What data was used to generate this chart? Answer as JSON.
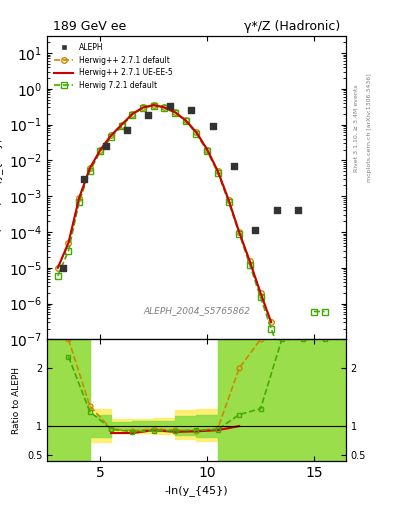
{
  "title_left": "189 GeV ee",
  "title_right": "γ*/Z (Hadronic)",
  "xlabel": "-ln(y_{45})",
  "ylabel_main": "1/σ dσ/dln(y_{45})",
  "ylabel_ratio": "Ratio to ALEPH",
  "watermark": "ALEPH_2004_S5765862",
  "right_label_top": "Rivet 3.1.10, ≥ 3.4M events",
  "right_label_bottom": "mcplots.cern.ch [arXiv:1306.3436]",
  "xlim": [
    2.5,
    16.5
  ],
  "xticks": [
    5,
    10,
    15
  ],
  "ylim_main": [
    1e-07,
    30
  ],
  "ylim_ratio": [
    0.4,
    2.5
  ],
  "yticks_ratio": [
    0.5,
    1,
    2
  ],
  "aleph_x": [
    3.25,
    4.25,
    5.25,
    6.25,
    7.25,
    8.25,
    9.25,
    10.25,
    11.25,
    12.25,
    13.25,
    14.25
  ],
  "aleph_y": [
    1e-05,
    0.003,
    0.025,
    0.07,
    0.18,
    0.32,
    0.26,
    0.09,
    0.007,
    0.00011,
    0.0004,
    0.0004
  ],
  "hw271_x": [
    3.0,
    3.5,
    4.0,
    4.5,
    5.0,
    5.5,
    6.0,
    6.5,
    7.0,
    7.5,
    8.0,
    8.5,
    9.0,
    9.5,
    10.0,
    10.5,
    11.0,
    11.5,
    12.0,
    12.5,
    13.0,
    13.5,
    14.0,
    14.5,
    15.0
  ],
  "hw271_y": [
    1e-05,
    5e-05,
    0.0009,
    0.006,
    0.02,
    0.05,
    0.1,
    0.2,
    0.3,
    0.35,
    0.3,
    0.22,
    0.13,
    0.06,
    0.02,
    0.005,
    0.0008,
    0.0001,
    1.5e-05,
    2e-06,
    3e-07,
    null,
    null,
    null,
    null
  ],
  "hw271ue_x": [
    3.0,
    3.5,
    4.0,
    4.5,
    5.0,
    5.5,
    6.0,
    6.5,
    7.0,
    7.5,
    8.0,
    8.5,
    9.0,
    9.5,
    10.0,
    10.5,
    11.0,
    11.5,
    12.0,
    12.5,
    13.0
  ],
  "hw271ue_y": [
    1e-05,
    5e-05,
    0.0009,
    0.006,
    0.02,
    0.05,
    0.1,
    0.2,
    0.3,
    0.35,
    0.3,
    0.22,
    0.13,
    0.06,
    0.02,
    0.005,
    0.0008,
    0.0001,
    1.5e-05,
    2e-06,
    3e-07
  ],
  "hw721_x": [
    3.0,
    3.5,
    4.0,
    4.5,
    5.0,
    5.5,
    6.0,
    6.5,
    7.0,
    7.5,
    8.0,
    8.5,
    9.0,
    9.5,
    10.0,
    10.5,
    11.0,
    11.5,
    12.0,
    12.5,
    13.0,
    13.5,
    14.0,
    14.5,
    15.0,
    15.5
  ],
  "hw721_y": [
    6e-06,
    3e-05,
    0.0007,
    0.005,
    0.018,
    0.045,
    0.09,
    0.19,
    0.29,
    0.34,
    0.29,
    0.21,
    0.125,
    0.055,
    0.018,
    0.0045,
    0.0007,
    9e-05,
    1.2e-05,
    1.5e-06,
    2e-07,
    3e-08,
    null,
    null,
    6e-07,
    6e-07
  ],
  "ratio_hw271_x": [
    3.5,
    4.5,
    5.5,
    6.5,
    7.5,
    8.5,
    9.5,
    10.5,
    11.5,
    12.5
  ],
  "ratio_hw271_y": [
    2.5,
    1.35,
    0.95,
    0.92,
    0.95,
    0.93,
    0.92,
    0.96,
    2.0,
    2.5
  ],
  "ratio_hw271ue_x": [
    5.5,
    6.5,
    7.5,
    8.5,
    9.5,
    10.5,
    11.5
  ],
  "ratio_hw271ue_y": [
    0.88,
    0.88,
    0.93,
    0.9,
    0.91,
    0.93,
    1.0
  ],
  "ratio_hw721_x": [
    3.5,
    4.5,
    5.5,
    6.5,
    7.5,
    8.5,
    9.5,
    10.5,
    11.5,
    12.5,
    13.5,
    14.5,
    15.5
  ],
  "ratio_hw721_y": [
    2.2,
    1.25,
    0.95,
    0.9,
    0.92,
    0.92,
    0.93,
    0.94,
    1.2,
    1.3,
    2.5,
    2.5,
    2.5
  ],
  "green_band_x": [
    2.5,
    3.5,
    3.5,
    4.5,
    4.5,
    5.5,
    5.5,
    6.5,
    6.5,
    7.5,
    7.5,
    8.5,
    8.5,
    9.5,
    9.5,
    10.5,
    10.5,
    11.5,
    11.5,
    12.5,
    12.5,
    13.5,
    13.5,
    16.5
  ],
  "green_band_lo": [
    0.4,
    0.4,
    0.4,
    0.4,
    0.82,
    0.82,
    0.93,
    0.93,
    0.93,
    0.93,
    0.92,
    0.92,
    0.85,
    0.85,
    0.82,
    0.82,
    0.4,
    0.4,
    0.4,
    0.4,
    0.4,
    0.4,
    0.4,
    0.4
  ],
  "green_band_hi": [
    2.5,
    2.5,
    2.5,
    2.5,
    1.2,
    1.2,
    1.07,
    1.07,
    1.08,
    1.08,
    1.08,
    1.08,
    1.18,
    1.18,
    1.2,
    1.2,
    2.5,
    2.5,
    2.5,
    2.5,
    2.5,
    2.5,
    2.5,
    2.5
  ],
  "yellow_band_x": [
    2.5,
    3.5,
    3.5,
    4.5,
    4.5,
    5.5,
    5.5,
    6.5,
    6.5,
    7.5,
    7.5,
    8.5,
    8.5,
    9.5,
    9.5,
    10.5,
    10.5,
    11.5,
    11.5,
    12.5,
    12.5,
    13.5,
    13.5,
    16.5
  ],
  "yellow_band_lo": [
    0.4,
    0.4,
    0.4,
    0.4,
    0.72,
    0.72,
    0.88,
    0.88,
    0.88,
    0.88,
    0.87,
    0.87,
    0.78,
    0.78,
    0.75,
    0.75,
    0.4,
    0.4,
    0.4,
    0.4,
    0.4,
    0.4,
    0.4,
    0.4
  ],
  "yellow_band_hi": [
    2.5,
    2.5,
    2.5,
    2.5,
    1.3,
    1.3,
    1.12,
    1.12,
    1.13,
    1.13,
    1.14,
    1.14,
    1.28,
    1.28,
    1.3,
    1.3,
    2.5,
    2.5,
    2.5,
    2.5,
    2.5,
    2.5,
    2.5,
    2.5
  ],
  "color_aleph": "#333333",
  "color_hw271": "#cc8800",
  "color_hw271ue": "#cc0000",
  "color_hw721": "#44aa00",
  "color_green_band": "#88dd44",
  "color_yellow_band": "#ffee66"
}
